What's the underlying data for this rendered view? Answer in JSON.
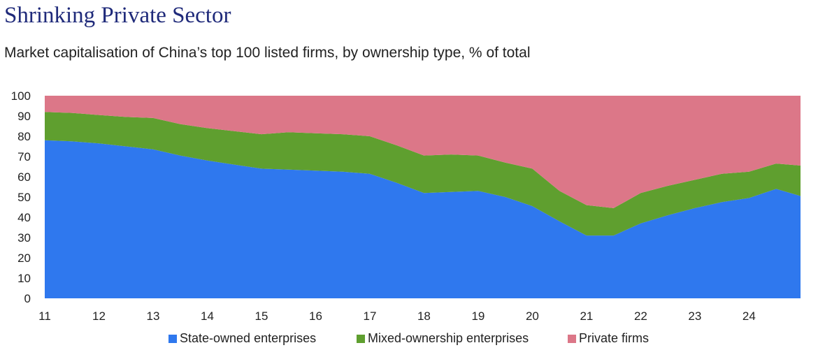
{
  "chart_data": {
    "type": "area",
    "stacked": true,
    "title": "Shrinking Private Sector",
    "subtitle": "Market capitalisation of China’s top 100 listed firms, by ownership type, % of total",
    "xlabel": "",
    "ylabel": "",
    "ylim": [
      0,
      100
    ],
    "yticks": [
      0,
      10,
      20,
      30,
      40,
      50,
      60,
      70,
      80,
      90,
      100
    ],
    "xlim": [
      11,
      24.95
    ],
    "xtick_labels": [
      "11",
      "12",
      "13",
      "14",
      "15",
      "16",
      "17",
      "18",
      "19",
      "20",
      "21",
      "22",
      "23",
      "24"
    ],
    "grid": false,
    "legend_position": "bottom",
    "x": [
      11.0,
      11.5,
      12.0,
      12.5,
      13.0,
      13.5,
      14.0,
      14.5,
      15.0,
      15.5,
      16.0,
      16.5,
      17.0,
      17.5,
      18.0,
      18.5,
      19.0,
      19.5,
      20.0,
      20.5,
      21.0,
      21.5,
      22.0,
      22.5,
      23.0,
      23.5,
      24.0,
      24.5,
      24.95
    ],
    "series": [
      {
        "name": "State-owned enterprises",
        "color": "#2f78ee",
        "values": [
          78,
          77.5,
          76.5,
          75,
          73.5,
          70.5,
          68,
          66,
          64,
          63.5,
          63,
          62.5,
          61.5,
          57,
          52,
          52.5,
          53,
          50,
          45.5,
          38,
          31,
          31,
          37,
          41,
          44.5,
          47.5,
          49.5,
          54,
          50.5
        ]
      },
      {
        "name": "Mixed-ownership enterprises",
        "color": "#5f9f2f",
        "values": [
          14,
          14,
          14,
          14.5,
          15.5,
          15.5,
          16,
          16.5,
          17,
          18.5,
          18.5,
          18.5,
          18.5,
          18.5,
          18.5,
          18.5,
          17.5,
          17,
          18.5,
          15,
          15,
          13.5,
          15,
          14.5,
          14,
          14,
          13,
          12.5,
          15
        ]
      },
      {
        "name": "Private firms",
        "color": "#dc7788",
        "values": [
          8,
          8.5,
          9.5,
          10.5,
          11,
          14,
          16,
          17.5,
          19,
          18,
          18.5,
          19,
          20,
          24.5,
          29.5,
          29,
          29.5,
          33,
          36,
          47,
          54,
          55.5,
          48,
          44.5,
          41.5,
          38.5,
          37.5,
          33.5,
          34.5
        ]
      }
    ]
  }
}
